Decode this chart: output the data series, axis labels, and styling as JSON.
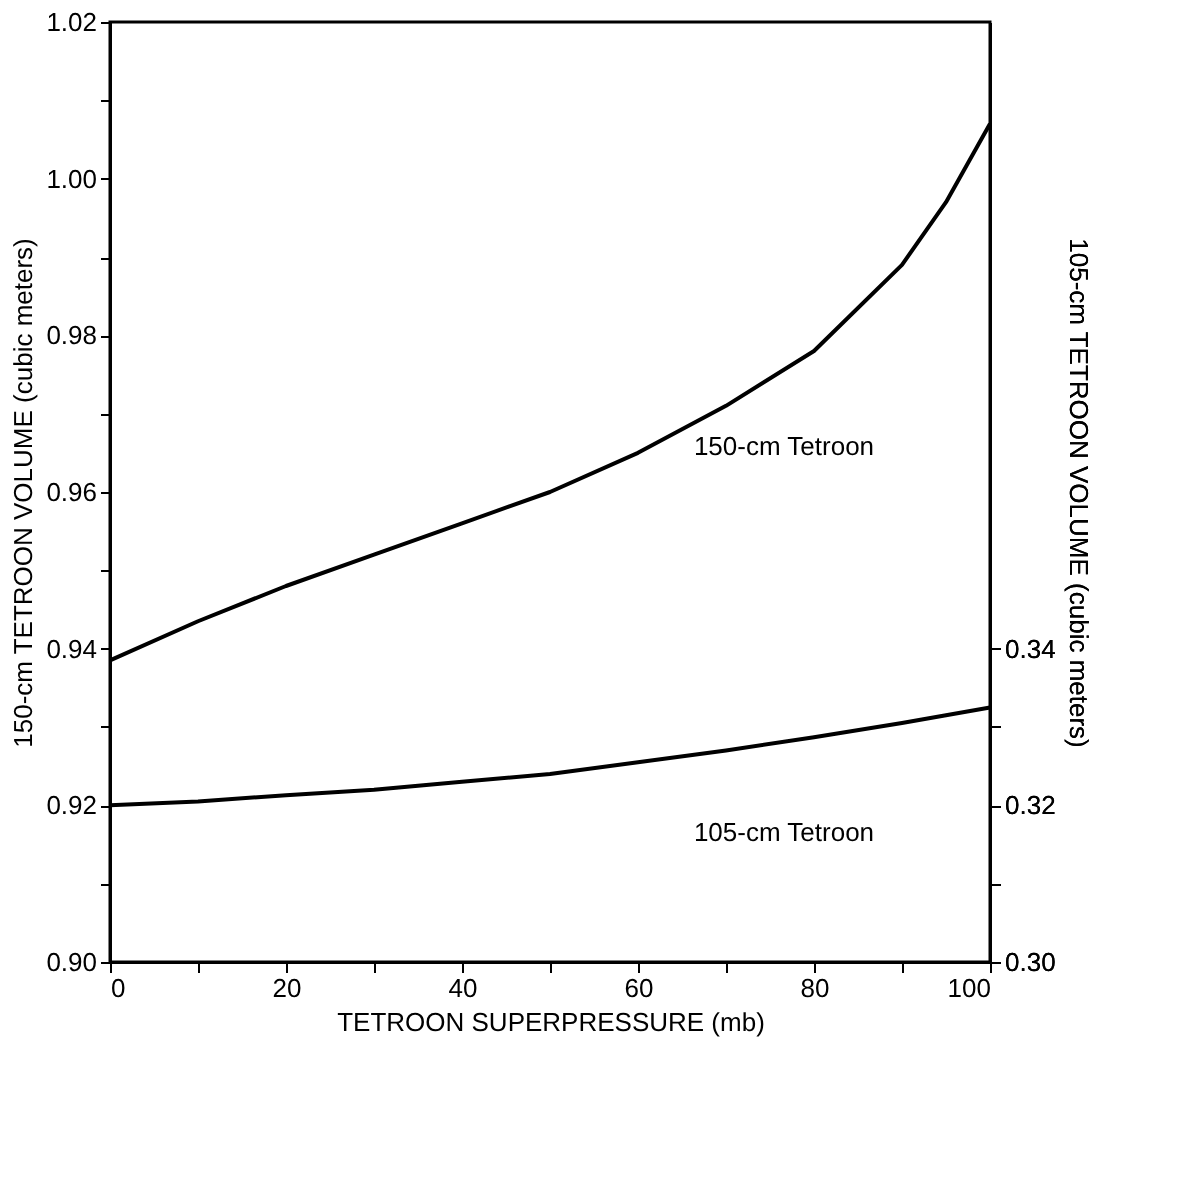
{
  "chart_data": {
    "type": "line",
    "xlabel": "TETROON SUPERPRESSURE (mb)",
    "ylabel": "150-cm TETROON VOLUME (cubic meters)",
    "y2label": "105-cm TETROON VOLUME (cubic meters)",
    "x": [
      0,
      10,
      20,
      30,
      40,
      50,
      60,
      70,
      80,
      90,
      95,
      100
    ],
    "series": [
      {
        "color": "#000000",
        "values": [
          0.9385,
          0.9435,
          0.948,
          0.952,
          0.956,
          0.96,
          0.965,
          0.971,
          0.978,
          0.989,
          0.997,
          1.007
        ]
      },
      {
        "color": "#000000",
        "axis": "y2",
        "values": [
          0.32,
          0.3205,
          0.3213,
          0.322,
          0.323,
          0.324,
          0.3255,
          0.327,
          0.3287,
          0.3305,
          0.3315,
          0.3325
        ]
      }
    ],
    "xlim": [
      0,
      100
    ],
    "xticks": [
      0,
      {
        "value": 10,
        "label": null
      },
      20,
      {
        "value": 30,
        "label": null
      },
      40,
      {
        "value": 50,
        "label": null
      },
      60,
      {
        "value": 70,
        "label": null
      },
      80,
      {
        "value": 90,
        "label": null
      },
      100
    ],
    "ylim": [
      0.9,
      1.02
    ],
    "yticks": [
      {
        "value": 0.9,
        "label": "0.90"
      },
      {
        "value": 0.91,
        "label": null
      },
      0.92,
      {
        "value": 0.93,
        "label": null
      },
      0.94,
      {
        "value": 0.95,
        "label": null
      },
      0.96,
      {
        "value": 0.97,
        "label": null
      },
      0.98,
      {
        "value": 0.99,
        "label": null
      },
      {
        "value": 1.0,
        "label": "1.00"
      },
      {
        "value": 1.01,
        "label": null
      },
      1.02
    ],
    "y2lim": [
      0.3,
      0.42
    ],
    "y2ticks": [
      {
        "value": 0.3,
        "label": "0.30"
      },
      {
        "value": 0.31,
        "label": null
      },
      0.32,
      {
        "value": 0.33,
        "label": null
      },
      0.34
    ],
    "annotations": [
      "150-cm Tetroon",
      "105-cm Tetroon"
    ],
    "grid": false,
    "marker": "none",
    "line_style": "solid"
  }
}
